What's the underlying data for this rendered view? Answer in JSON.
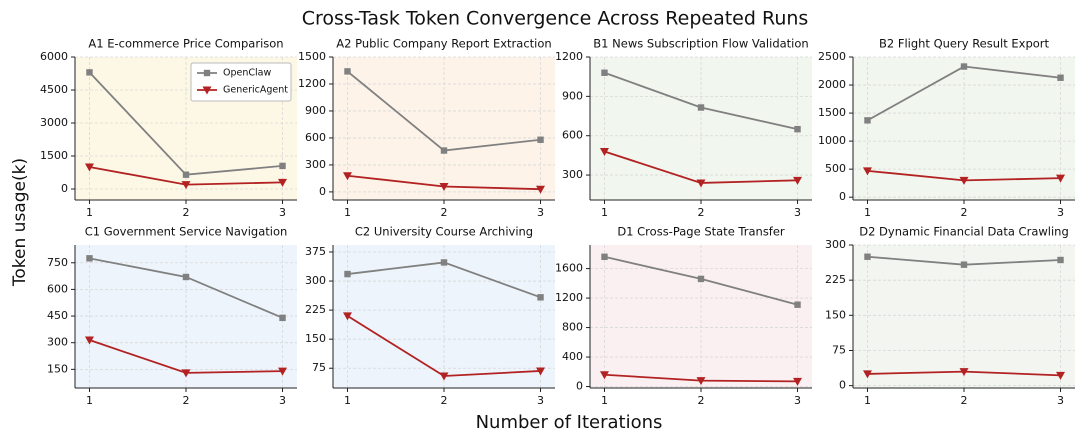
{
  "title": "Cross-Task Token Convergence Across Repeated Runs",
  "xlabel": "Number of Iterations",
  "ylabel": "Token usage(k)",
  "chart_data": [
    {
      "type": "line",
      "title": "A1 E-commerce Price Comparison",
      "background": "#fdf8e6",
      "legend": "upper right",
      "x": [
        1,
        2,
        3
      ],
      "xlim": [
        0.85,
        3.15
      ],
      "xticks": [
        1,
        2,
        3
      ],
      "ylim": [
        -500,
        6000
      ],
      "yticks": [
        0,
        1500,
        3000,
        4500,
        6000
      ],
      "grid": true,
      "series": [
        {
          "name": "OpenClaw",
          "color": "#808080",
          "marker": "square",
          "values": [
            5300,
            650,
            1050
          ]
        },
        {
          "name": "GenericAgent",
          "color": "#b22222",
          "marker": "triangle-down",
          "values": [
            1000,
            200,
            300
          ]
        }
      ]
    },
    {
      "type": "line",
      "title": "A2 Public Company Report Extraction",
      "background": "#fdf3e9",
      "x": [
        1,
        2,
        3
      ],
      "xlim": [
        0.85,
        3.15
      ],
      "xticks": [
        1,
        2,
        3
      ],
      "ylim": [
        -90,
        1500
      ],
      "yticks": [
        0,
        300,
        600,
        900,
        1200,
        1500
      ],
      "grid": true,
      "series": [
        {
          "name": "OpenClaw",
          "color": "#808080",
          "marker": "square",
          "values": [
            1340,
            460,
            580
          ]
        },
        {
          "name": "GenericAgent",
          "color": "#b22222",
          "marker": "triangle-down",
          "values": [
            180,
            60,
            30
          ]
        }
      ]
    },
    {
      "type": "line",
      "title": "B1 News Subscription Flow Validation",
      "background": "#f1f6ee",
      "x": [
        1,
        2,
        3
      ],
      "xlim": [
        0.85,
        3.15
      ],
      "xticks": [
        1,
        2,
        3
      ],
      "ylim": [
        110,
        1200
      ],
      "yticks": [
        300,
        600,
        900,
        1200
      ],
      "grid": true,
      "series": [
        {
          "name": "OpenClaw",
          "color": "#808080",
          "marker": "square",
          "values": [
            1080,
            815,
            650
          ]
        },
        {
          "name": "GenericAgent",
          "color": "#b22222",
          "marker": "triangle-down",
          "values": [
            480,
            240,
            260
          ]
        }
      ]
    },
    {
      "type": "line",
      "title": "B2 Flight Query Result Export",
      "background": "#f1f6ee",
      "x": [
        1,
        2,
        3
      ],
      "xlim": [
        0.85,
        3.15
      ],
      "xticks": [
        1,
        2,
        3
      ],
      "ylim": [
        -50,
        2500
      ],
      "yticks": [
        0,
        500,
        1000,
        1500,
        2000,
        2500
      ],
      "grid": true,
      "series": [
        {
          "name": "OpenClaw",
          "color": "#808080",
          "marker": "square",
          "values": [
            1370,
            2330,
            2130
          ]
        },
        {
          "name": "GenericAgent",
          "color": "#b22222",
          "marker": "triangle-down",
          "values": [
            470,
            300,
            340
          ]
        }
      ]
    },
    {
      "type": "line",
      "title": "C1 Government Service Navigation",
      "background": "#edf4fb",
      "x": [
        1,
        2,
        3
      ],
      "xlim": [
        0.85,
        3.15
      ],
      "xticks": [
        1,
        2,
        3
      ],
      "ylim": [
        45,
        850
      ],
      "yticks": [
        150,
        300,
        450,
        600,
        750
      ],
      "grid": true,
      "series": [
        {
          "name": "OpenClaw",
          "color": "#808080",
          "marker": "square",
          "values": [
            775,
            670,
            440
          ]
        },
        {
          "name": "GenericAgent",
          "color": "#b22222",
          "marker": "triangle-down",
          "values": [
            315,
            130,
            140
          ]
        }
      ]
    },
    {
      "type": "line",
      "title": "C2 University Course Archiving",
      "background": "#edf4fb",
      "x": [
        1,
        2,
        3
      ],
      "xlim": [
        0.85,
        3.15
      ],
      "xticks": [
        1,
        2,
        3
      ],
      "ylim": [
        24,
        393
      ],
      "yticks": [
        75,
        150,
        225,
        300,
        375
      ],
      "grid": true,
      "series": [
        {
          "name": "OpenClaw",
          "color": "#808080",
          "marker": "square",
          "values": [
            318,
            348,
            258
          ]
        },
        {
          "name": "GenericAgent",
          "color": "#b22222",
          "marker": "triangle-down",
          "values": [
            210,
            55,
            68
          ]
        }
      ]
    },
    {
      "type": "line",
      "title": "D1 Cross-Page State Transfer",
      "background": "#fbf0f1",
      "x": [
        1,
        2,
        3
      ],
      "xlim": [
        0.85,
        3.15
      ],
      "xticks": [
        1,
        2,
        3
      ],
      "ylim": [
        -20,
        1920
      ],
      "yticks": [
        0,
        400,
        800,
        1200,
        1600
      ],
      "grid": true,
      "series": [
        {
          "name": "OpenClaw",
          "color": "#808080",
          "marker": "square",
          "values": [
            1760,
            1460,
            1110
          ]
        },
        {
          "name": "GenericAgent",
          "color": "#b22222",
          "marker": "triangle-down",
          "values": [
            160,
            80,
            70
          ]
        }
      ]
    },
    {
      "type": "line",
      "title": "D2 Dynamic Financial Data Crawling",
      "background": "#f3f5f1",
      "x": [
        1,
        2,
        3
      ],
      "xlim": [
        0.85,
        3.15
      ],
      "xticks": [
        1,
        2,
        3
      ],
      "ylim": [
        -5,
        300
      ],
      "yticks": [
        0,
        75,
        150,
        225,
        300
      ],
      "grid": true,
      "series": [
        {
          "name": "OpenClaw",
          "color": "#808080",
          "marker": "square",
          "values": [
            275,
            258,
            268
          ]
        },
        {
          "name": "GenericAgent",
          "color": "#b22222",
          "marker": "triangle-down",
          "values": [
            25,
            30,
            22
          ]
        }
      ]
    }
  ]
}
